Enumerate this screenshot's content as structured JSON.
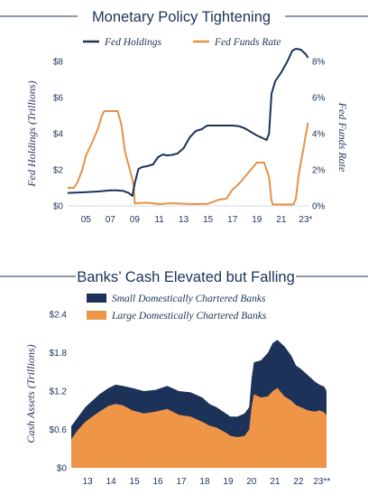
{
  "charts": [
    {
      "type": "line",
      "title": "Monetary Policy Tightening",
      "x_ticks": [
        "05",
        "07",
        "09",
        "11",
        "13",
        "15",
        "17",
        "19",
        "21",
        "23*"
      ],
      "y_left": {
        "label": "Fed Holdings (Trillions)",
        "ticks": [
          "$0",
          "$2",
          "$4",
          "$6",
          "$8"
        ],
        "range": [
          0,
          8.6
        ]
      },
      "y_right": {
        "label": "Fed Funds Rate",
        "ticks": [
          "0%",
          "2%",
          "4%",
          "6%",
          "8%"
        ],
        "range": [
          0,
          8.6
        ]
      },
      "series": [
        {
          "name": "Fed Holdings",
          "color": "#1c3258",
          "axis": "left",
          "x": [
            2003.5,
            2005,
            2006,
            2007,
            2007.5,
            2008,
            2008.5,
            2008.8,
            2009.0,
            2009.3,
            2009.6,
            2010,
            2010.5,
            2010.9,
            2011.3,
            2011.6,
            2012,
            2012.5,
            2013,
            2013.5,
            2014,
            2014.5,
            2014.8,
            2015,
            2016,
            2017,
            2017.5,
            2018,
            2018.5,
            2019,
            2019.4,
            2019.8,
            2020.0,
            2020.2,
            2020.5,
            2021,
            2021.5,
            2021.9,
            2022.2,
            2022.6,
            2023.0,
            2023.2
          ],
          "y": [
            0.72,
            0.76,
            0.8,
            0.86,
            0.86,
            0.84,
            0.72,
            0.55,
            1.25,
            2.05,
            2.15,
            2.2,
            2.3,
            2.7,
            2.85,
            2.8,
            2.82,
            2.9,
            3.2,
            3.8,
            4.15,
            4.25,
            4.4,
            4.45,
            4.45,
            4.45,
            4.42,
            4.3,
            4.1,
            3.9,
            3.78,
            3.65,
            4.0,
            6.2,
            6.9,
            7.4,
            8.0,
            8.6,
            8.7,
            8.65,
            8.4,
            8.2
          ]
        },
        {
          "name": "Fed Funds Rate",
          "color": "#e69146",
          "axis": "right",
          "x": [
            2003.5,
            2004.0,
            2004.3,
            2004.7,
            2005,
            2005.5,
            2006,
            2006.3,
            2006.5,
            2007,
            2007.6,
            2007.9,
            2008.2,
            2008.6,
            2008.9,
            2009.0,
            2010,
            2011,
            2012,
            2013,
            2014,
            2015,
            2015.9,
            2016.5,
            2017,
            2017.5,
            2018,
            2018.5,
            2019.0,
            2019.3,
            2019.6,
            2019.8,
            2020.0,
            2020.2,
            2020.3,
            2021,
            2021.5,
            2022.0,
            2022.2,
            2022.4,
            2022.6,
            2022.8,
            2023.0,
            2023.2
          ],
          "y": [
            1.0,
            1.0,
            1.3,
            2.0,
            2.8,
            3.5,
            4.3,
            5.0,
            5.25,
            5.25,
            5.25,
            4.5,
            3.0,
            2.0,
            1.2,
            0.15,
            0.18,
            0.1,
            0.15,
            0.12,
            0.1,
            0.12,
            0.35,
            0.4,
            0.9,
            1.2,
            1.6,
            2.0,
            2.4,
            2.4,
            2.4,
            2.0,
            1.6,
            0.3,
            0.08,
            0.08,
            0.08,
            0.08,
            0.4,
            1.6,
            2.4,
            3.1,
            3.9,
            4.6
          ]
        }
      ]
    },
    {
      "type": "area",
      "title": "Banks’ Cash Elevated but Falling",
      "ylabel": "Cash Assets (Trillions)",
      "x_ticks": [
        "13",
        "14",
        "15",
        "16",
        "17",
        "18",
        "19",
        "20",
        "21",
        "22",
        "23**"
      ],
      "y_ticks": [
        "$0",
        "$0.6",
        "$1.2",
        "$1.8",
        "$2.4"
      ],
      "y_range": [
        0,
        2.4
      ],
      "series": [
        {
          "name": "Small Domestically Chartered Banks",
          "color": "#1c3258",
          "x": [
            2012.4,
            2012.7,
            2013,
            2013.3,
            2013.6,
            2014,
            2014.3,
            2014.6,
            2015,
            2015.5,
            2016,
            2016.5,
            2017,
            2017.5,
            2018,
            2018.3,
            2018.6,
            2019,
            2019.2,
            2019.5,
            2019.8,
            2020.0,
            2020.1,
            2020.2,
            2020.5,
            2020.8,
            2021.0,
            2021.2,
            2021.5,
            2021.8,
            2022.0,
            2022.2,
            2022.5,
            2022.8,
            2023.0,
            2023.2,
            2023.3
          ],
          "y": [
            0.65,
            0.8,
            0.95,
            1.05,
            1.15,
            1.25,
            1.3,
            1.28,
            1.25,
            1.2,
            1.22,
            1.28,
            1.2,
            1.18,
            1.1,
            1.0,
            0.95,
            0.85,
            0.8,
            0.8,
            0.85,
            0.95,
            1.4,
            1.65,
            1.68,
            1.8,
            1.95,
            2.0,
            1.9,
            1.75,
            1.6,
            1.55,
            1.45,
            1.35,
            1.3,
            1.27,
            1.2
          ]
        },
        {
          "name": "Large Domestically Chartered Banks",
          "color": "#ee9548",
          "x": [
            2012.4,
            2012.7,
            2013,
            2013.3,
            2013.6,
            2014,
            2014.3,
            2014.6,
            2015,
            2015.5,
            2016,
            2016.5,
            2017,
            2017.5,
            2018,
            2018.3,
            2018.6,
            2019,
            2019.2,
            2019.5,
            2019.8,
            2020.0,
            2020.1,
            2020.2,
            2020.5,
            2020.8,
            2021.0,
            2021.2,
            2021.5,
            2021.8,
            2022.0,
            2022.2,
            2022.5,
            2022.8,
            2023.0,
            2023.2,
            2023.3
          ],
          "y": [
            0.45,
            0.6,
            0.72,
            0.8,
            0.88,
            0.97,
            1.0,
            0.98,
            0.9,
            0.85,
            0.88,
            0.92,
            0.83,
            0.8,
            0.72,
            0.66,
            0.63,
            0.55,
            0.5,
            0.48,
            0.5,
            0.6,
            0.95,
            1.15,
            1.1,
            1.12,
            1.2,
            1.25,
            1.12,
            1.05,
            0.98,
            0.95,
            0.9,
            0.88,
            0.9,
            0.87,
            0.82
          ]
        }
      ]
    }
  ]
}
